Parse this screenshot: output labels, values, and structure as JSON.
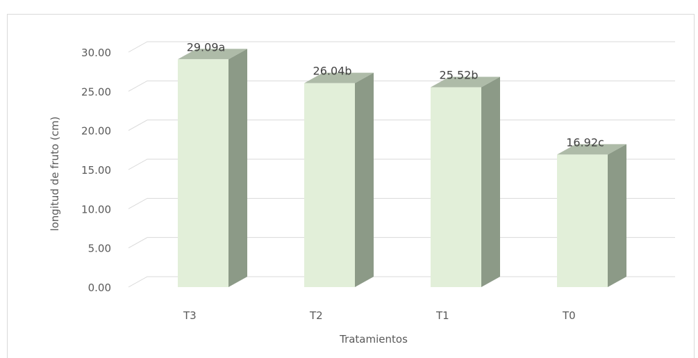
{
  "chart_data": {
    "type": "bar",
    "title": "",
    "xlabel": "Tratamientos",
    "ylabel": "longitud  de fruto (cm)",
    "categories": [
      "T3",
      "T2",
      "T1",
      "T0"
    ],
    "values": [
      29.09,
      26.04,
      25.52,
      16.92
    ],
    "data_labels": [
      "29.09a",
      "26.04b",
      "25.52b",
      "16.92c"
    ],
    "y_ticks": [
      "0.00",
      "5.00",
      "10.00",
      "15.00",
      "20.00",
      "25.00",
      "30.00"
    ],
    "ylim": [
      0,
      30
    ],
    "grid": true,
    "legend": "none",
    "style": "3d-column"
  },
  "colors": {
    "bar_front": "#e2efd9",
    "bar_side": "#8c9a87",
    "bar_top": "#aebba8",
    "grid": "#d9d9d9",
    "text": "#595959"
  }
}
